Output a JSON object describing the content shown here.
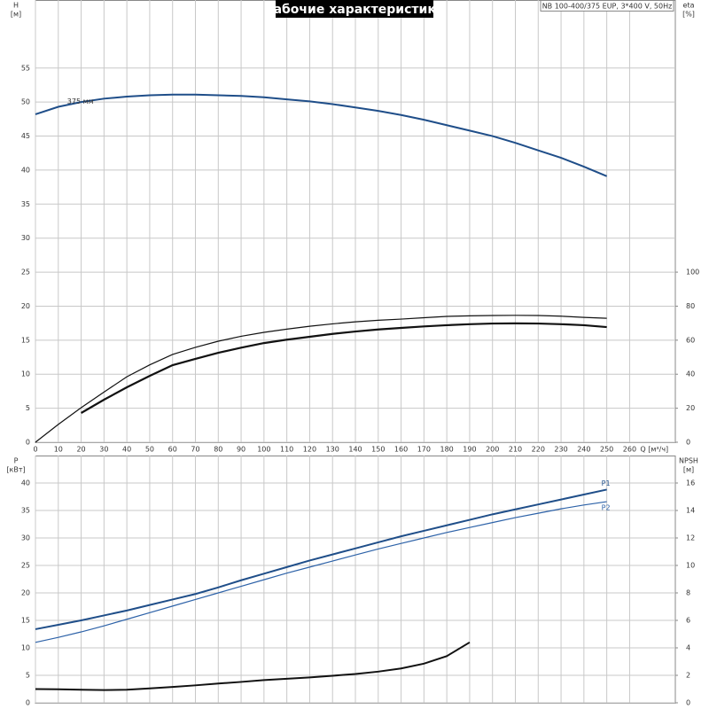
{
  "chart_data": [
    {
      "type": "line",
      "title": "Рабочие характеристики",
      "subtitle": "NB 100-400/375 EUP, 3*400 V, 50Hz",
      "ylabel": "H",
      "yunit": "[м]",
      "y2label": "eta",
      "y2unit": "[%]",
      "xlabel": "Q [м³/ч]",
      "annotation": "375 мм",
      "xlim": [
        0,
        280
      ],
      "xticks": [
        0,
        10,
        20,
        30,
        40,
        50,
        60,
        70,
        80,
        90,
        100,
        110,
        120,
        130,
        140,
        150,
        160,
        170,
        180,
        190,
        200,
        210,
        220,
        230,
        240,
        250,
        260
      ],
      "ylim": [
        0,
        65
      ],
      "yticks": [
        0,
        5,
        10,
        15,
        20,
        25,
        30,
        35,
        40,
        45,
        50,
        55
      ],
      "y2lim": [
        0,
        260
      ],
      "y2ticks": [
        0,
        20,
        40,
        60,
        80,
        100
      ],
      "grid": true,
      "show_xtick_labels": true,
      "x": [
        0,
        10,
        20,
        30,
        40,
        50,
        60,
        70,
        80,
        90,
        100,
        110,
        120,
        130,
        140,
        150,
        160,
        170,
        180,
        190,
        200,
        210,
        220,
        230,
        240,
        250
      ],
      "series": [
        {
          "color": "#1f4e89",
          "width": 2,
          "values": [
            48.2,
            49.3,
            50.0,
            50.5,
            50.8,
            51.0,
            51.1,
            51.1,
            51.0,
            50.9,
            50.7,
            50.4,
            50.1,
            49.7,
            49.2,
            48.7,
            48.1,
            47.4,
            46.6,
            45.8,
            45.0,
            44.0,
            42.9,
            41.8,
            40.5,
            39.1
          ]
        },
        {
          "color": "#111111",
          "width": 1.2,
          "axis": "y2",
          "values": [
            0,
            10.5,
            20.3,
            29.5,
            38.5,
            45.5,
            51.6,
            55.8,
            59.4,
            62.3,
            64.6,
            66.5,
            68.2,
            69.6,
            70.8,
            71.7,
            72.4,
            73.2,
            74.0,
            74.3,
            74.5,
            74.6,
            74.5,
            74.1,
            73.4,
            72.9
          ]
        },
        {
          "color": "#111111",
          "width": 2.2,
          "axis": "y2",
          "values": [
            null,
            null,
            17.2,
            25.0,
            32.3,
            39.0,
            45.3,
            49.0,
            52.6,
            55.6,
            58.3,
            60.3,
            62.0,
            63.7,
            65.1,
            66.3,
            67.2,
            68.1,
            68.8,
            69.4,
            69.8,
            69.9,
            69.8,
            69.4,
            68.8,
            67.7
          ]
        }
      ]
    },
    {
      "type": "line",
      "ylabel": "P",
      "yunit": "[кВт]",
      "y2label": "NPSH",
      "y2unit": "[м]",
      "xlim": [
        0,
        280
      ],
      "xticks": [
        0,
        10,
        20,
        30,
        40,
        50,
        60,
        70,
        80,
        90,
        100,
        110,
        120,
        130,
        140,
        150,
        160,
        170,
        180,
        190,
        200,
        210,
        220,
        230,
        240,
        250,
        260
      ],
      "ylim": [
        0,
        45
      ],
      "yticks": [
        0,
        5,
        10,
        15,
        20,
        25,
        30,
        35,
        40
      ],
      "y2lim": [
        0,
        18
      ],
      "y2ticks": [
        0,
        2,
        4,
        6,
        8,
        10,
        12,
        14,
        16
      ],
      "grid": true,
      "show_xtick_labels": false,
      "x": [
        0,
        10,
        20,
        30,
        40,
        50,
        60,
        70,
        80,
        90,
        100,
        110,
        120,
        130,
        140,
        150,
        160,
        170,
        180,
        190,
        200,
        210,
        220,
        230,
        240,
        250
      ],
      "series": [
        {
          "name": "P1",
          "color": "#1f4e89",
          "width": 2,
          "values": [
            13.4,
            14.2,
            15.0,
            15.9,
            16.8,
            17.8,
            18.8,
            19.8,
            21.0,
            22.3,
            23.5,
            24.7,
            25.9,
            27.0,
            28.1,
            29.2,
            30.3,
            31.3,
            32.3,
            33.3,
            34.3,
            35.2,
            36.1,
            37.0,
            37.9,
            38.8
          ]
        },
        {
          "name": "P2",
          "color": "#2d62a8",
          "width": 1.2,
          "values": [
            11.0,
            11.9,
            12.9,
            14.0,
            15.2,
            16.4,
            17.6,
            18.8,
            20.0,
            21.2,
            22.4,
            23.6,
            24.7,
            25.8,
            26.9,
            28.0,
            29.0,
            30.0,
            31.0,
            31.9,
            32.8,
            33.7,
            34.5,
            35.3,
            36.0,
            36.6
          ]
        },
        {
          "color": "#111111",
          "width": 2,
          "axis": "y2",
          "values": [
            1.0,
            0.98,
            0.95,
            0.93,
            0.95,
            1.05,
            1.15,
            1.27,
            1.4,
            1.52,
            1.65,
            1.75,
            1.85,
            1.97,
            2.1,
            2.27,
            2.5,
            2.85,
            3.4,
            4.4,
            null,
            null,
            null,
            null,
            null,
            null
          ]
        }
      ]
    }
  ]
}
